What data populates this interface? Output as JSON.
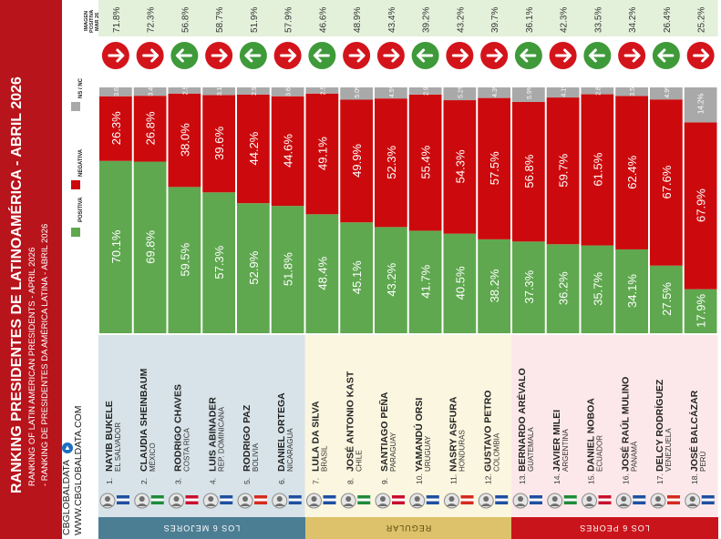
{
  "header": {
    "title": "RANKING PRESIDENTES DE LATINOAMÉRICA - ABRIL 2026",
    "subtitle_en": "RANKING OF LATIN AMERICAN PRESIDENTS - APRIL 2026",
    "subtitle_pt": "- RANKING DE PRESIDENTES DA AMÉRICA LATINA - ABRIL 2026",
    "brand": "CBGLOBALDATA",
    "brand_url": "WWW.CBGLOBALDATA.COM",
    "mark_header": [
      "IMAGEN",
      "POSITIVA",
      "MAR 26"
    ]
  },
  "legend": {
    "positive": "POSITIVA",
    "negative": "NEGATIVA",
    "ns": "NS / NC"
  },
  "colors": {
    "positive": "#5fa84f",
    "negative": "#cc0a0d",
    "ns": "#a9a9a9",
    "title_band": "#b8141c",
    "group_best": "#4b7d93",
    "group_regular": "#ddc26b",
    "group_worst": "#c9141b",
    "tint_best": "#d7e3e8",
    "tint_regular": "#fbf6df",
    "tint_worst": "#fce8ea",
    "mark_bg": "#e3f0da",
    "arrow_up": "#3f9a3a",
    "arrow_down": "#d4141b"
  },
  "groups": [
    {
      "label": "LOS 6 MEJORES",
      "from": 1,
      "to": 6
    },
    {
      "label": "REGULAR",
      "from": 7,
      "to": 12
    },
    {
      "label": "LOS 6 PEORES",
      "from": 13,
      "to": 18
    }
  ],
  "chart_data": {
    "type": "bar",
    "stacked": true,
    "categories": [
      "NAYIB BUKELE",
      "CLAUDIA SHEINBAUM",
      "RODRIGO CHAVES",
      "LUIS ABINADER",
      "RODRIGO PAZ",
      "DANIEL ORTEGA",
      "LULA DA SILVA",
      "JOSÉ ANTONIO KAST",
      "SANTIAGO PEÑA",
      "YAMANDÚ ORSI",
      "NASRY ASFURA",
      "GUSTAVO PETRO",
      "BERNARDO ARÉVALO",
      "JAVIER MILEI",
      "DANIEL NOBOA",
      "JOSÉ RAÚL MULINO",
      "DELCY RODRÍGUEZ",
      "JOSÉ BALCÁZAR"
    ],
    "countries": [
      "EL SALVADOR",
      "MÉXICO",
      "COSTA RICA",
      "REP. DOMINICANA",
      "BOLIVIA",
      "NICARAGUA",
      "BRASIL",
      "CHILE",
      "PARAGUAY",
      "URUGUAY",
      "HONDURAS",
      "COLOMBIA",
      "GUATEMALA",
      "ARGENTINA",
      "ECUADOR",
      "PANAMÁ",
      "VENEZUELA",
      "PERÚ"
    ],
    "ranks": [
      "1.",
      "2.",
      "3.",
      "4.",
      "5.",
      "6.",
      "7.",
      "8.",
      "9.",
      "10.",
      "11.",
      "12.",
      "13.",
      "14.",
      "15.",
      "16.",
      "17.",
      "18."
    ],
    "series": [
      {
        "name": "POSITIVA",
        "values": [
          70.1,
          69.8,
          59.5,
          57.3,
          52.9,
          51.8,
          48.4,
          45.1,
          43.2,
          41.7,
          40.5,
          38.2,
          37.3,
          36.2,
          35.7,
          34.1,
          27.5,
          17.9
        ]
      },
      {
        "name": "NEGATIVA",
        "values": [
          26.3,
          26.8,
          38.0,
          39.6,
          44.2,
          44.6,
          49.1,
          49.9,
          52.3,
          55.4,
          54.3,
          57.5,
          56.8,
          59.7,
          61.5,
          62.4,
          67.6,
          67.9
        ]
      },
      {
        "name": "NS / NC",
        "values": [
          3.6,
          3.4,
          2.5,
          3.1,
          2.9,
          3.6,
          2.5,
          5.0,
          4.5,
          2.9,
          5.2,
          4.3,
          5.9,
          4.1,
          2.8,
          3.5,
          4.9,
          14.2
        ]
      }
    ],
    "previous_positive_mar26": [
      "71.8%",
      "72.3%",
      "56.8%",
      "58.7%",
      "51.9%",
      "57.9%",
      "46.6%",
      "48.9%",
      "43.4%",
      "39.2%",
      "43.2%",
      "39.7%",
      "36.1%",
      "42.3%",
      "33.5%",
      "34.2%",
      "26.4%",
      "25.2%"
    ],
    "trend": [
      "down",
      "down",
      "up",
      "down",
      "up",
      "down",
      "up",
      "down",
      "down",
      "up",
      "down",
      "down",
      "up",
      "down",
      "up",
      "down",
      "up",
      "down"
    ],
    "ylim": [
      0,
      100
    ]
  }
}
